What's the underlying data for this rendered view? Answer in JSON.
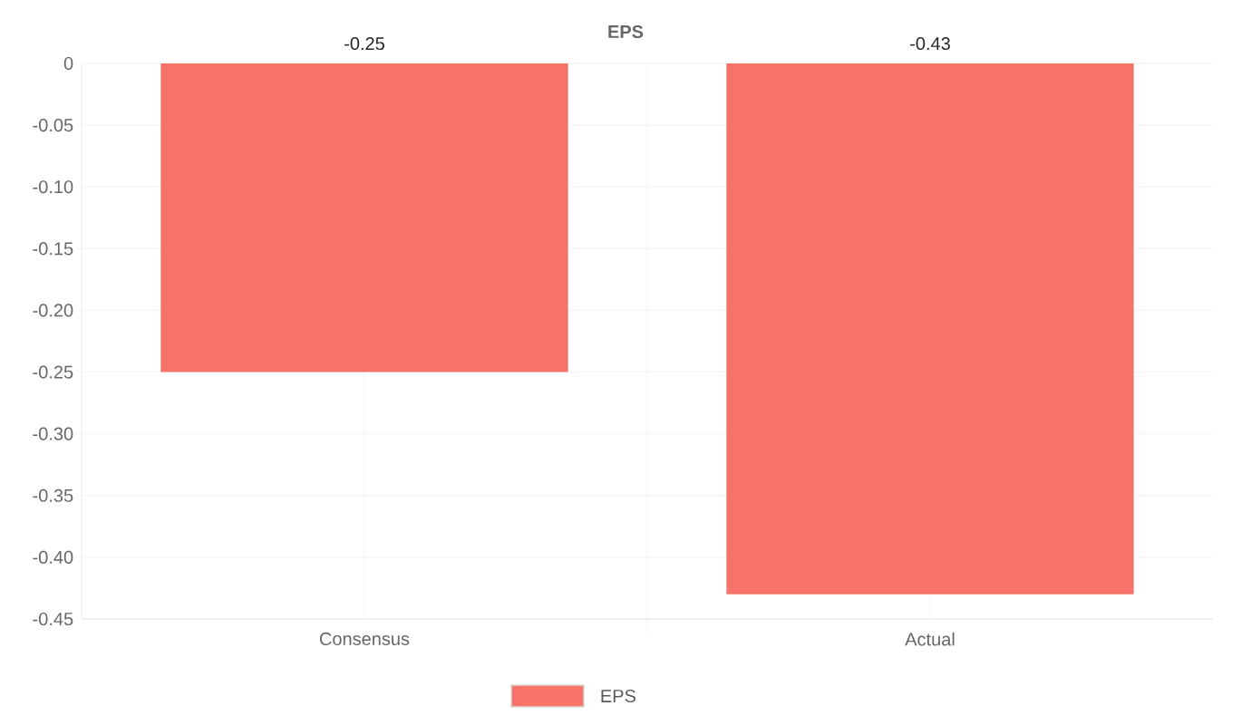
{
  "chart_data": {
    "type": "bar",
    "title": "EPS",
    "categories": [
      "Consensus",
      "Actual"
    ],
    "series": [
      {
        "name": "EPS",
        "color": "#f7736a",
        "values": [
          -0.25,
          -0.43
        ]
      }
    ],
    "ylim": [
      -0.45,
      0
    ],
    "yticks": [
      0,
      {
        "value": -0.05,
        "label": "-0.05"
      },
      {
        "value": -0.1,
        "label": "-0.10"
      },
      {
        "value": -0.15,
        "label": "-0.15"
      },
      {
        "value": -0.2,
        "label": "-0.20"
      },
      {
        "value": -0.25,
        "label": "-0.25"
      },
      {
        "value": -0.3,
        "label": "-0.30"
      },
      {
        "value": -0.35,
        "label": "-0.35"
      },
      {
        "value": -0.4,
        "label": "-0.40"
      },
      {
        "value": -0.45,
        "label": "-0.45"
      }
    ],
    "grid": true,
    "legend": "bottom",
    "data_labels": true
  }
}
